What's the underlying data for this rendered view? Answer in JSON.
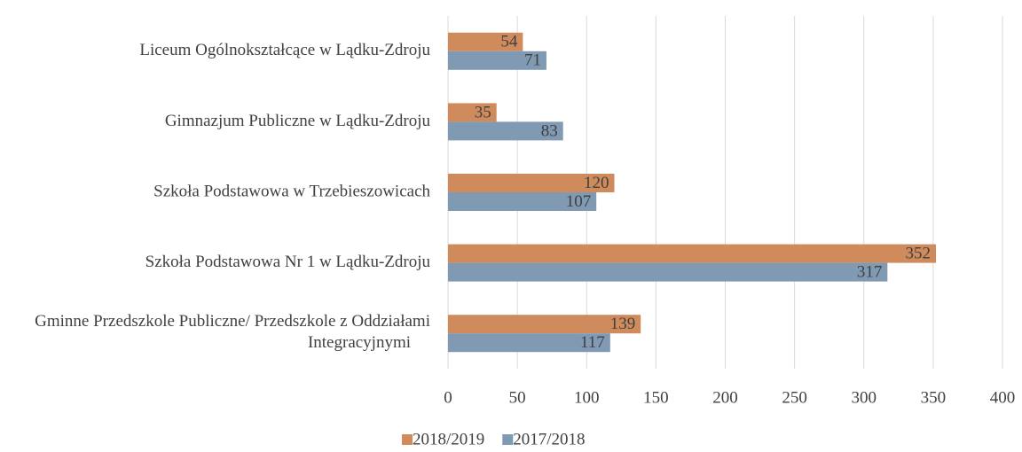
{
  "chart_data": {
    "type": "barh",
    "categories": [
      "Liceum Ogólnokształcące w Lądku-Zdroju",
      "Gimnazjum Publiczne w Lądku-Zdroju",
      "Szkoła Podstawowa w Trzebieszowicach",
      "Szkoła Podstawowa Nr 1 w Lądku-Zdroju",
      "Gminne Przedszkole Publiczne/ Przedszkole z Oddziałami Integracyjnymi"
    ],
    "series": [
      {
        "name": "2018/2019",
        "color": "#cf8b5b",
        "values": [
          54,
          35,
          120,
          352,
          139
        ]
      },
      {
        "name": "2017/2018",
        "color": "#7f9ab2",
        "values": [
          71,
          83,
          107,
          317,
          117
        ]
      }
    ],
    "xlim": [
      0,
      400
    ],
    "xticks": [
      0,
      50,
      100,
      150,
      200,
      250,
      300,
      350,
      400
    ],
    "grid": true,
    "legend": "bottom"
  }
}
